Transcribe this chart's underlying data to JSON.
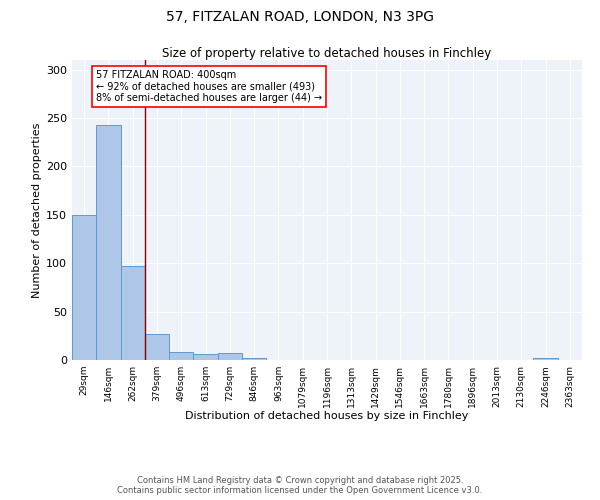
{
  "title_line1": "57, FITZALAN ROAD, LONDON, N3 3PG",
  "title_line2": "Size of property relative to detached houses in Finchley",
  "xlabel": "Distribution of detached houses by size in Finchley",
  "ylabel": "Number of detached properties",
  "categories": [
    "29sqm",
    "146sqm",
    "262sqm",
    "379sqm",
    "496sqm",
    "613sqm",
    "729sqm",
    "846sqm",
    "963sqm",
    "1079sqm",
    "1196sqm",
    "1313sqm",
    "1429sqm",
    "1546sqm",
    "1663sqm",
    "1780sqm",
    "1896sqm",
    "2013sqm",
    "2130sqm",
    "2246sqm",
    "2363sqm"
  ],
  "values": [
    150,
    243,
    97,
    27,
    8,
    6,
    7,
    2,
    0,
    0,
    0,
    0,
    0,
    0,
    0,
    0,
    0,
    0,
    0,
    2,
    0
  ],
  "bar_color": "#aec6e8",
  "bar_edge_color": "#5b9bd5",
  "red_line_x": 2.5,
  "ylim": [
    0,
    310
  ],
  "yticks": [
    0,
    50,
    100,
    150,
    200,
    250,
    300
  ],
  "annotation_text": "57 FITZALAN ROAD: 400sqm\n← 92% of detached houses are smaller (493)\n8% of semi-detached houses are larger (44) →",
  "footnote": "Contains HM Land Registry data © Crown copyright and database right 2025.\nContains public sector information licensed under the Open Government Licence v3.0.",
  "background_color": "#eef2f9",
  "grid_color": "#ffffff",
  "fig_bg_color": "#ffffff"
}
